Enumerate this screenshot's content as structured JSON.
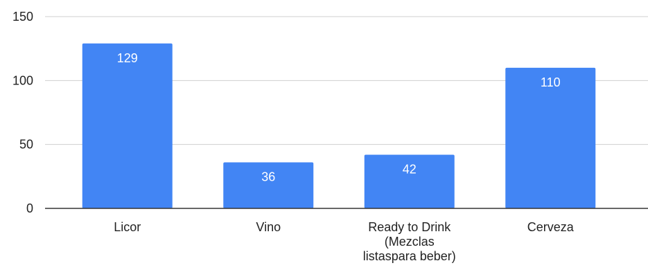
{
  "chart_data": {
    "type": "bar",
    "categories": [
      "Licor",
      "Vino",
      "Ready to Drink (Mezclas listaspara beber)",
      "Cerveza"
    ],
    "category_label_lines": [
      [
        "Licor"
      ],
      [
        "Vino"
      ],
      [
        "Ready to Drink",
        "(Mezclas",
        "listaspara beber)"
      ],
      [
        "Cerveza"
      ]
    ],
    "values": [
      129,
      36,
      42,
      110
    ],
    "data_labels": [
      "129",
      "36",
      "42",
      "110"
    ],
    "title": "",
    "xlabel": "",
    "ylabel": "",
    "ylim": [
      0,
      150
    ],
    "yticks": [
      0,
      50,
      100,
      150
    ],
    "ytick_labels": [
      "0",
      "50",
      "100",
      "150"
    ],
    "grid": true,
    "legend": "none",
    "colors": {
      "bar": "#4285f4",
      "grid": "#cfcfcf",
      "axis": "#333333",
      "text": "#222222",
      "data_label": "#ffffff"
    }
  }
}
